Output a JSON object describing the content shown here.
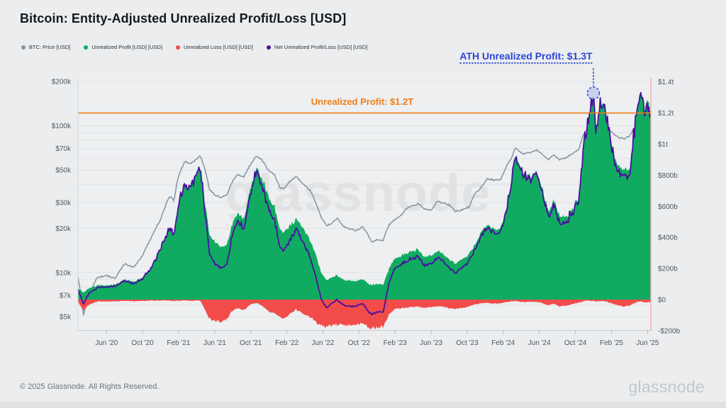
{
  "header": {
    "title": "Bitcoin: Entity-Adjusted Unrealized Profit/Loss [USD]"
  },
  "legend": {
    "items": [
      {
        "label": "BTC: Price [USD]",
        "color": "#8494a2"
      },
      {
        "label": "Unrealized Profit [USD] [USD]",
        "color": "#10ab61"
      },
      {
        "label": "Unrealized Loss [USD] [USD]",
        "color": "#f14c4a"
      },
      {
        "label": "Net Unrealized Profit/Loss [USD] [USD]",
        "color": "#47119f"
      }
    ]
  },
  "annotations": {
    "profit_line": {
      "label": "Unrealized Profit: $1.2T",
      "value_b": 1200,
      "color": "#ee7d17"
    },
    "ath": {
      "label": "ATH Unrealized Profit: $1.3T",
      "color": "#2b46d9"
    }
  },
  "watermark": "glassnode",
  "footer": {
    "copyright": "© 2025 Glassnode. All Rights Reserved.",
    "logo": "glassnode"
  },
  "chart_data": {
    "type": "area",
    "title": "Bitcoin: Entity-Adjusted Unrealized Profit/Loss [USD]",
    "x_axis": {
      "ticks": [
        {
          "label": "Jun '20",
          "t": 3
        },
        {
          "label": "Oct '20",
          "t": 7
        },
        {
          "label": "Feb '21",
          "t": 11
        },
        {
          "label": "Jun '21",
          "t": 15
        },
        {
          "label": "Oct '21",
          "t": 19
        },
        {
          "label": "Feb '22",
          "t": 23
        },
        {
          "label": "Jun '22",
          "t": 27
        },
        {
          "label": "Oct '22",
          "t": 31
        },
        {
          "label": "Feb '23",
          "t": 35
        },
        {
          "label": "Jun '23",
          "t": 39
        },
        {
          "label": "Oct '23",
          "t": 43
        },
        {
          "label": "Feb '24",
          "t": 47
        },
        {
          "label": "Jun '24",
          "t": 51
        },
        {
          "label": "Oct '24",
          "t": 55
        },
        {
          "label": "Feb '25",
          "t": 59
        },
        {
          "label": "Jun '25",
          "t": 63
        }
      ]
    },
    "left_axis": {
      "scale": "log",
      "ticks": [
        {
          "label": "$200k",
          "value_k": 200
        },
        {
          "label": "$100k",
          "value_k": 100
        },
        {
          "label": "$70k",
          "value_k": 70
        },
        {
          "label": "$50k",
          "value_k": 50
        },
        {
          "label": "$30k",
          "value_k": 30
        },
        {
          "label": "$20k",
          "value_k": 20
        },
        {
          "label": "$10k",
          "value_k": 10
        },
        {
          "label": "$7k",
          "value_k": 7
        },
        {
          "label": "$5k",
          "value_k": 5
        }
      ],
      "grid_values_k": [
        5,
        6,
        7,
        8,
        9,
        10,
        20,
        30,
        40,
        50,
        60,
        70,
        80,
        90,
        100,
        200
      ]
    },
    "right_axis": {
      "scale": "linear",
      "ticks": [
        {
          "label": "$1.4t",
          "value_b": 1400
        },
        {
          "label": "$1.2t",
          "value_b": 1200
        },
        {
          "label": "$1t",
          "value_b": 1000
        },
        {
          "label": "$800b",
          "value_b": 800
        },
        {
          "label": "$600b",
          "value_b": 600
        },
        {
          "label": "$400b",
          "value_b": 400
        },
        {
          "label": "$200b",
          "value_b": 200
        },
        {
          "label": "$0",
          "value_b": 0
        },
        {
          "label": "-$200b",
          "value_b": -200
        }
      ]
    },
    "series": [
      {
        "name": "BTC: Price [USD]",
        "type": "line",
        "axis": "left",
        "color": "#8494a2"
      },
      {
        "name": "Unrealized Profit [USD] [USD]",
        "type": "area",
        "axis": "right",
        "color": "#10ab61"
      },
      {
        "name": "Unrealized Loss [USD] [USD]",
        "type": "area",
        "axis": "right",
        "color": "#f14c4a"
      },
      {
        "name": "Net Unrealized Profit/Loss [USD] [USD]",
        "type": "line",
        "axis": "right",
        "color": "#47119f"
      }
    ],
    "points_format": [
      "t_months_since_2020-03",
      "btc_price_kusd",
      "unrealized_profit_busd",
      "unrealized_loss_busd",
      "net_unrealized_busd"
    ],
    "points": [
      [
        -0.15,
        9.2,
        78,
        -12,
        66
      ],
      [
        0.45,
        5.1,
        42,
        -72,
        -30
      ],
      [
        1,
        6.9,
        72,
        -34,
        38
      ],
      [
        2,
        9.3,
        90,
        -13,
        77
      ],
      [
        3,
        9.5,
        92,
        -11,
        81
      ],
      [
        4,
        9.2,
        96,
        -11,
        85
      ],
      [
        5,
        11.5,
        131,
        -8,
        123
      ],
      [
        6,
        10.8,
        113,
        -12,
        101
      ],
      [
        7,
        13.0,
        141,
        -8,
        133
      ],
      [
        8,
        17.5,
        211,
        -6,
        205
      ],
      [
        9,
        23.0,
        331,
        -5,
        326
      ],
      [
        10,
        33,
        471,
        -6,
        465
      ],
      [
        10.5,
        31,
        425,
        -10,
        415
      ],
      [
        11,
        46,
        631,
        -6,
        625
      ],
      [
        11.7,
        57,
        751,
        -5,
        746
      ],
      [
        12.3,
        55,
        722,
        -6,
        716
      ],
      [
        13,
        59,
        811,
        -6,
        805
      ],
      [
        13.4,
        63,
        842,
        -6,
        836
      ],
      [
        14,
        49,
        600,
        -70,
        530
      ],
      [
        14.4,
        37,
        420,
        -120,
        300
      ],
      [
        15,
        34,
        372,
        -140,
        232
      ],
      [
        15.7,
        32.5,
        342,
        -138,
        204
      ],
      [
        16.4,
        34,
        360,
        -125,
        235
      ],
      [
        16.9,
        41,
        475,
        -75,
        400
      ],
      [
        17.5,
        47,
        565,
        -52,
        513
      ],
      [
        18.2,
        44.5,
        520,
        -68,
        452
      ],
      [
        19,
        55,
        720,
        -30,
        690
      ],
      [
        19.6,
        62,
        848,
        -20,
        828
      ],
      [
        20.2,
        59,
        790,
        -38,
        752
      ],
      [
        21,
        49,
        645,
        -78,
        567
      ],
      [
        21.6,
        47,
        610,
        -85,
        525
      ],
      [
        22.2,
        38,
        445,
        -115,
        330
      ],
      [
        22.7,
        37,
        430,
        -118,
        312
      ],
      [
        23.2,
        41,
        465,
        -100,
        365
      ],
      [
        24,
        45,
        515,
        -62,
        453
      ],
      [
        24.8,
        40.5,
        462,
        -92,
        370
      ],
      [
        25.6,
        36,
        380,
        -110,
        270
      ],
      [
        26.2,
        30,
        290,
        -142,
        148
      ],
      [
        26.8,
        24,
        175,
        -168,
        7
      ],
      [
        27.4,
        21,
        128,
        -178,
        -50
      ],
      [
        28,
        21.5,
        142,
        -165,
        -23
      ],
      [
        28.6,
        23.5,
        158,
        -158,
        0
      ],
      [
        29.3,
        20.5,
        124,
        -162,
        -38
      ],
      [
        30,
        19.8,
        121,
        -166,
        -45
      ],
      [
        30.7,
        19.4,
        118,
        -160,
        -42
      ],
      [
        31.4,
        20.5,
        128,
        -155,
        -27
      ],
      [
        32,
        18,
        102,
        -178,
        -76
      ],
      [
        32.4,
        16.2,
        92,
        -188,
        -96
      ],
      [
        33,
        16.8,
        99,
        -180,
        -81
      ],
      [
        33.7,
        16.6,
        97,
        -176,
        -79
      ],
      [
        34.3,
        21,
        195,
        -95,
        100
      ],
      [
        35,
        23.2,
        268,
        -60,
        208
      ],
      [
        35.7,
        24.5,
        282,
        -55,
        227
      ],
      [
        36.3,
        27.5,
        302,
        -52,
        250
      ],
      [
        37,
        28.5,
        315,
        -47,
        268
      ],
      [
        37.6,
        29.5,
        320,
        -45,
        275
      ],
      [
        38.3,
        27,
        270,
        -54,
        216
      ],
      [
        39,
        26.5,
        282,
        -50,
        232
      ],
      [
        39.7,
        30.5,
        312,
        -43,
        269
      ],
      [
        40.3,
        29.8,
        300,
        -44,
        256
      ],
      [
        41,
        29,
        258,
        -55,
        203
      ],
      [
        41.7,
        26,
        232,
        -60,
        172
      ],
      [
        42.4,
        26.8,
        252,
        -54,
        198
      ],
      [
        43.2,
        28,
        288,
        -45,
        243
      ],
      [
        43.8,
        34,
        352,
        -30,
        322
      ],
      [
        44.5,
        37.5,
        428,
        -24,
        404
      ],
      [
        45.2,
        43.5,
        482,
        -20,
        462
      ],
      [
        46,
        42.5,
        448,
        -26,
        422
      ],
      [
        46.7,
        43,
        455,
        -24,
        431
      ],
      [
        47.3,
        52,
        582,
        -15,
        567
      ],
      [
        48,
        62,
        810,
        -11,
        799
      ],
      [
        48.35,
        71,
        928,
        -9,
        919
      ],
      [
        48.8,
        67,
        862,
        -13,
        849
      ],
      [
        49.3,
        64,
        822,
        -16,
        806
      ],
      [
        50,
        66,
        790,
        -15,
        775
      ],
      [
        50.7,
        68.5,
        802,
        -14,
        788
      ],
      [
        51.3,
        64,
        722,
        -22,
        700
      ],
      [
        52,
        59,
        565,
        -36,
        529
      ],
      [
        52.6,
        63,
        640,
        -26,
        614
      ],
      [
        53.2,
        58.5,
        542,
        -45,
        497
      ],
      [
        54,
        61,
        532,
        -38,
        494
      ],
      [
        54.7,
        64,
        585,
        -28,
        557
      ],
      [
        55.4,
        70,
        668,
        -18,
        650
      ],
      [
        56,
        90,
        1035,
        -8,
        1027
      ],
      [
        56.5,
        97,
        1180,
        -7,
        1173
      ],
      [
        57.0,
        104,
        1335,
        -7,
        1328
      ],
      [
        57.3,
        95,
        1075,
        -12,
        1063
      ],
      [
        57.7,
        101,
        1262,
        -9,
        1253
      ],
      [
        58.1,
        103,
        1282,
        -9,
        1273
      ],
      [
        58.6,
        96,
        1135,
        -16,
        1119
      ],
      [
        59.2,
        88,
        952,
        -28,
        924
      ],
      [
        59.8,
        83,
        852,
        -38,
        814
      ],
      [
        60.4,
        82,
        822,
        -44,
        778
      ],
      [
        61.0,
        85,
        838,
        -40,
        798
      ],
      [
        61.5,
        96,
        1072,
        -22,
        1050
      ],
      [
        62.0,
        105,
        1258,
        -13,
        1245
      ],
      [
        62.35,
        110,
        1325,
        -12,
        1313
      ],
      [
        62.8,
        104,
        1208,
        -20,
        1188
      ],
      [
        63.1,
        108,
        1298,
        -16,
        1282
      ],
      [
        63.4,
        106,
        1165,
        -22,
        1143
      ]
    ]
  }
}
